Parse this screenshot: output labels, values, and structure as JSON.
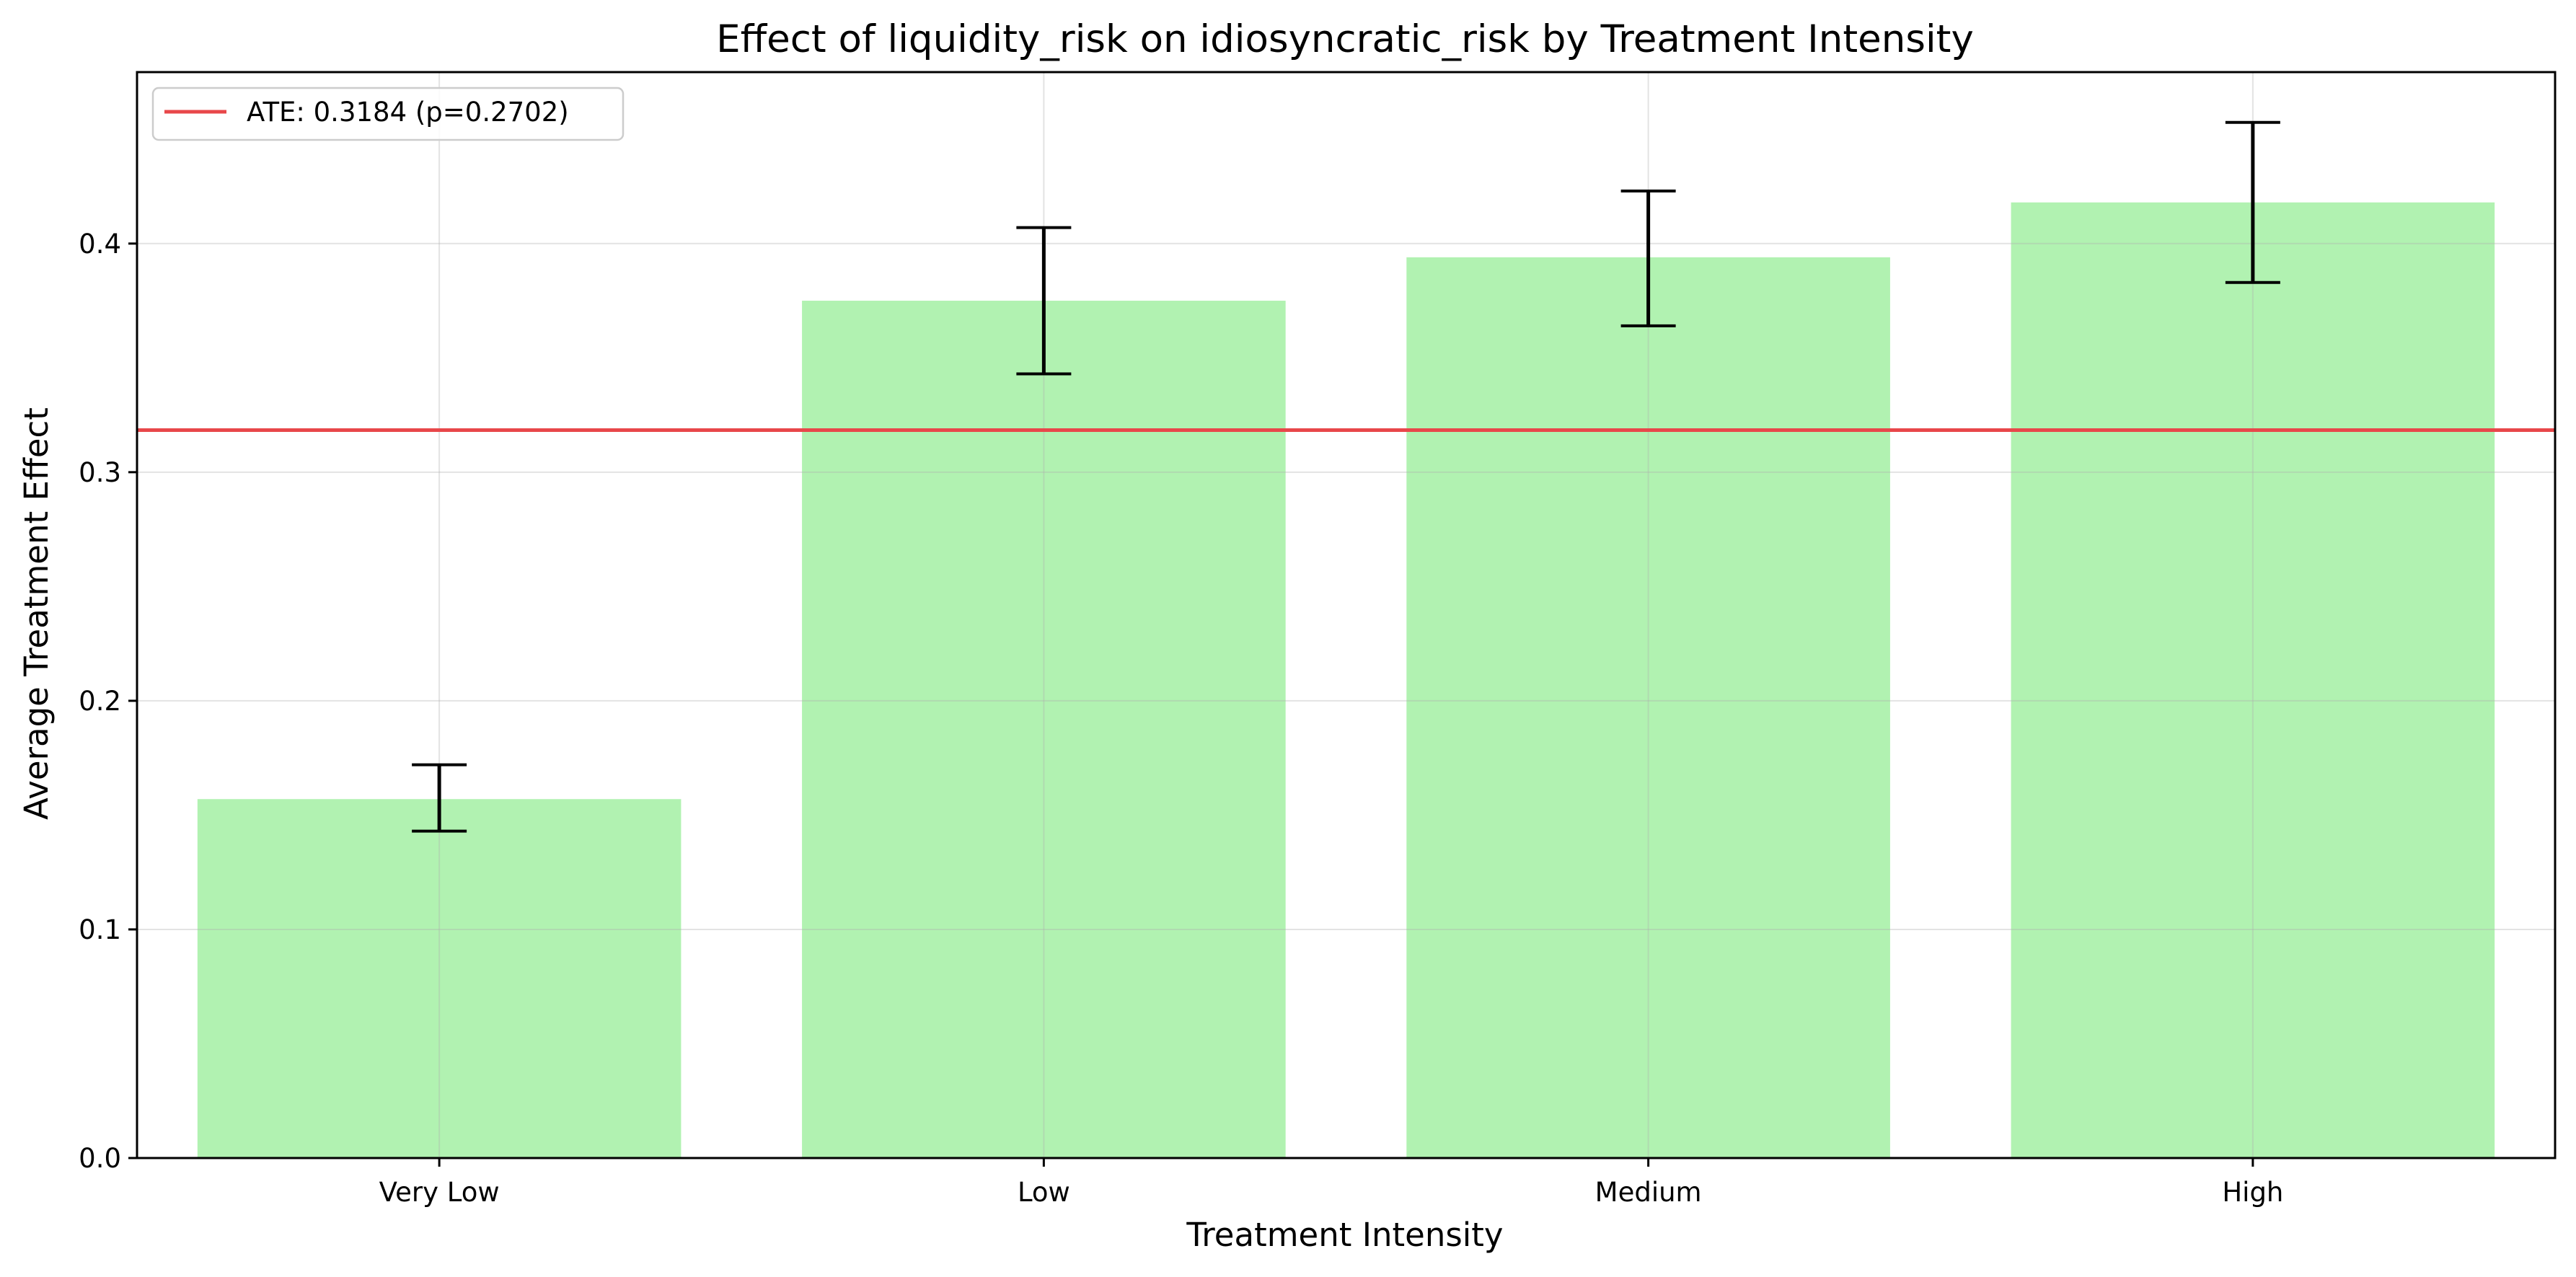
{
  "chart_data": {
    "type": "bar",
    "title": "Effect of liquidity_risk on idiosyncratic_risk by Treatment Intensity",
    "xlabel": "Treatment Intensity",
    "ylabel": "Average Treatment Effect",
    "categories": [
      "Very Low",
      "Low",
      "Medium",
      "High"
    ],
    "values": [
      0.157,
      0.375,
      0.394,
      0.418
    ],
    "error_low": [
      0.143,
      0.343,
      0.364,
      0.383
    ],
    "error_high": [
      0.172,
      0.407,
      0.423,
      0.453
    ],
    "ylim": [
      0,
      0.475
    ],
    "yticks": [
      0.0,
      0.1,
      0.2,
      0.3,
      0.4
    ],
    "ytick_labels": [
      "0.0",
      "0.1",
      "0.2",
      "0.3",
      "0.4"
    ],
    "reference_line": {
      "value": 0.3184,
      "label": "ATE: 0.3184 (p=0.2702)",
      "color": "#e8474a"
    },
    "zero_line": true,
    "bar_color": "#b1f2b1",
    "errorbar_color": "#000000",
    "grid": true,
    "legend_position": "top-left"
  }
}
